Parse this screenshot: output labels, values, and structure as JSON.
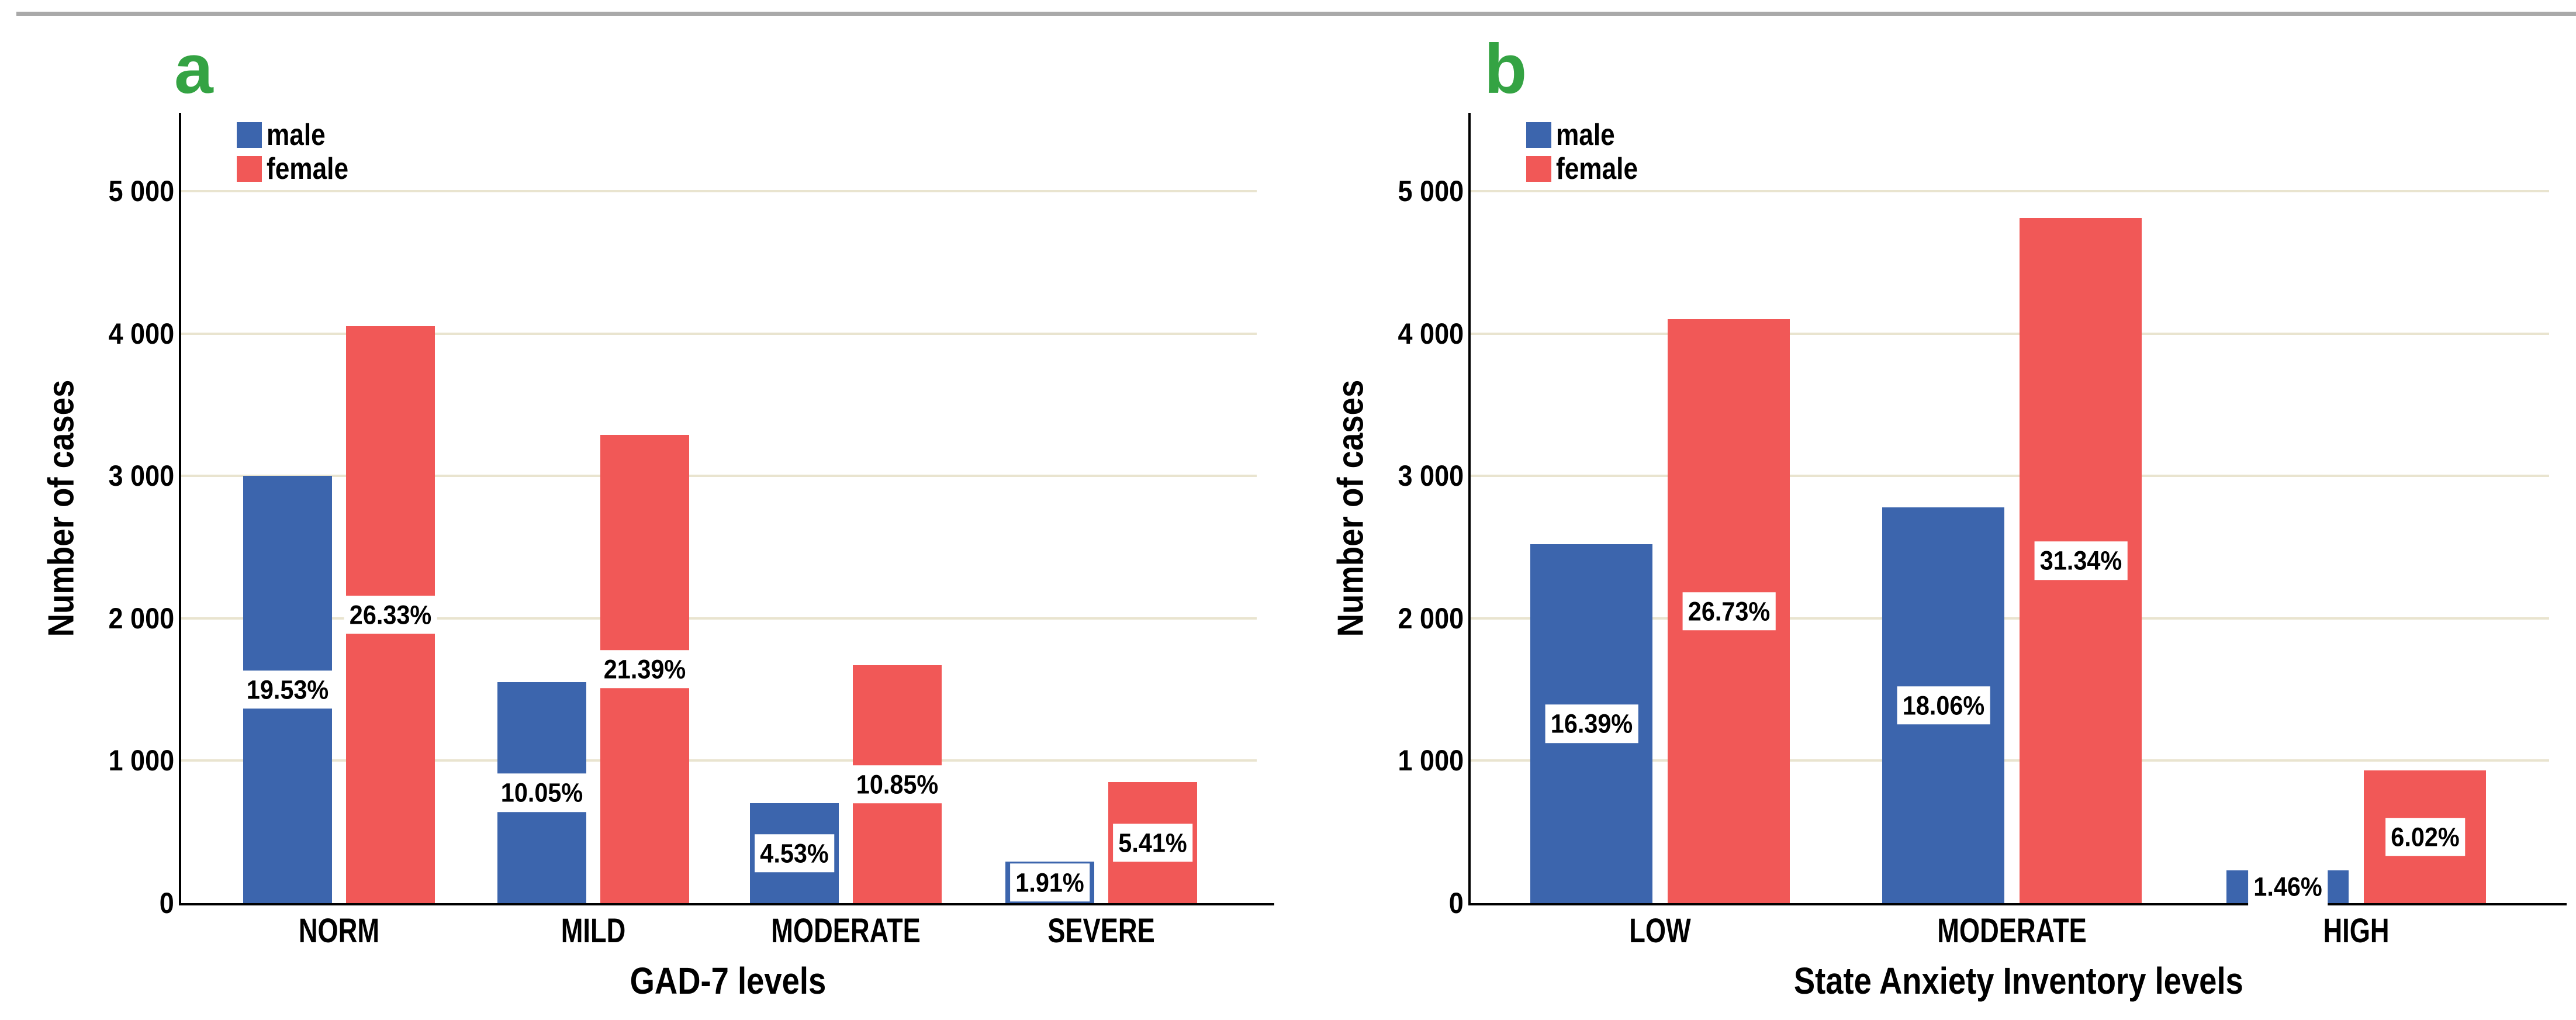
{
  "colors": {
    "male_bar": "#3c65ad",
    "female_bar": "#f15857",
    "panel_letter_green": "#34a343",
    "gridline": "#e9e4cf",
    "axis": "#000000",
    "top_rule_gray": "#a9a9a9",
    "label_box_background": "#ffffff"
  },
  "legend": {
    "items": [
      {
        "label": "male",
        "color": "#3c65ad"
      },
      {
        "label": "female",
        "color": "#f15857"
      }
    ]
  },
  "y_axis": {
    "title": "Number of cases",
    "ticks": [
      {
        "value": 0,
        "label": "0"
      },
      {
        "value": 1000,
        "label": "1 000"
      },
      {
        "value": 2000,
        "label": "2 000"
      },
      {
        "value": 3000,
        "label": "3 000"
      },
      {
        "value": 4000,
        "label": "4 000"
      },
      {
        "value": 5000,
        "label": "5 000"
      }
    ]
  },
  "chart_data": [
    {
      "type": "bar",
      "panel_label": "a",
      "xlabel": "GAD-7 levels",
      "ylabel": "Number of cases",
      "ylim": [
        0,
        5550
      ],
      "yticks": [
        0,
        1000,
        2000,
        3000,
        4000,
        5000
      ],
      "grid": "horizontal",
      "legend_position": "top-left-inside",
      "categories": [
        "NORM",
        "MILD",
        "MODERATE",
        "SEVERE"
      ],
      "series": [
        {
          "name": "male",
          "color": "#3c65ad",
          "values": [
            3000,
            1550,
            700,
            290
          ],
          "percent_labels": [
            "19.53%",
            "10.05%",
            "4.53%",
            "1.91%"
          ]
        },
        {
          "name": "female",
          "color": "#f15857",
          "values": [
            4050,
            3290,
            1670,
            850
          ],
          "percent_labels": [
            "26.33%",
            "21.39%",
            "10.85%",
            "5.41%"
          ]
        }
      ]
    },
    {
      "type": "bar",
      "panel_label": "b",
      "xlabel": "State Anxiety Inventory levels",
      "ylabel": "Number of cases",
      "ylim": [
        0,
        5550
      ],
      "yticks": [
        0,
        1000,
        2000,
        3000,
        4000,
        5000
      ],
      "grid": "horizontal",
      "legend_position": "top-left-inside",
      "categories": [
        "LOW",
        "MODERATE",
        "HIGH"
      ],
      "series": [
        {
          "name": "male",
          "color": "#3c65ad",
          "values": [
            2520,
            2780,
            230
          ],
          "percent_labels": [
            "16.39%",
            "18.06%",
            "1.46%"
          ]
        },
        {
          "name": "female",
          "color": "#f15857",
          "values": [
            4100,
            4810,
            930
          ],
          "percent_labels": [
            "26.73%",
            "31.34%",
            "6.02%"
          ]
        }
      ]
    }
  ]
}
